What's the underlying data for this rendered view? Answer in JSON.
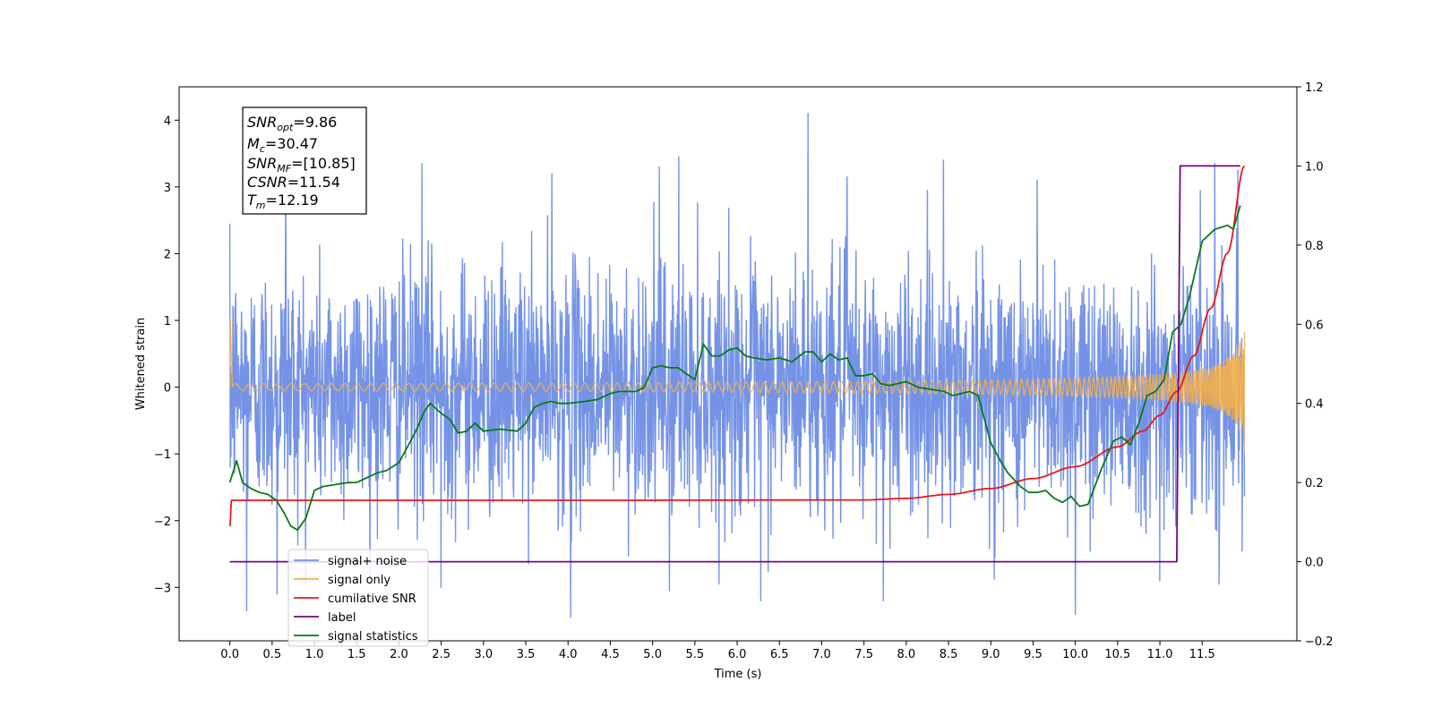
{
  "chart_data": {
    "type": "line",
    "xlabel": "Time (s)",
    "ylabel": "Whitened strain",
    "xlim": [
      -0.6,
      12.62
    ],
    "ylim": [
      -3.8,
      4.5
    ],
    "y2lim": [
      -0.2,
      1.2
    ],
    "x_ticks": [
      "0.0",
      "0.5",
      "1.0",
      "1.5",
      "2.0",
      "2.5",
      "3.0",
      "3.5",
      "4.0",
      "4.5",
      "5.0",
      "5.5",
      "6.0",
      "6.5",
      "7.0",
      "7.5",
      "8.0",
      "8.5",
      "9.0",
      "9.5",
      "10.0",
      "10.5",
      "11.0",
      "11.5"
    ],
    "y_ticks": [
      "4",
      "3",
      "2",
      "1",
      "0",
      "−1",
      "−2",
      "−3"
    ],
    "y2_ticks": [
      "1.2",
      "1.0",
      "0.8",
      "0.6",
      "0.4",
      "0.2",
      "0.0",
      "−0.2"
    ],
    "legend_position": "lower left",
    "grid": false,
    "annotation": {
      "lines": [
        {
          "sym": "SNR",
          "sub": "opt",
          "value": "=9.86"
        },
        {
          "sym": "M",
          "sub": "c",
          "value": "=30.47"
        },
        {
          "sym": "SNR",
          "sub": "MF",
          "value": "=[10.85]"
        },
        {
          "sym": "CSNR",
          "sub": "",
          "value": "=11.54"
        },
        {
          "sym": "T",
          "sub": "m",
          "value": "=12.19"
        }
      ]
    },
    "series": [
      {
        "name": "signal+ noise",
        "color": "#7593e6",
        "axis": "left",
        "kind": "noise",
        "x_range": [
          0,
          12.0
        ],
        "sigma": 1.0,
        "peaks": [
          {
            "x": 6.84,
            "y": 4.1
          },
          {
            "x": 0.66,
            "y": 3.25
          },
          {
            "x": 2.27,
            "y": 3.35
          },
          {
            "x": 3.81,
            "y": 3.2
          },
          {
            "x": 5.08,
            "y": 3.3
          },
          {
            "x": 5.31,
            "y": 3.45
          },
          {
            "x": 8.44,
            "y": 3.4
          },
          {
            "x": 11.65,
            "y": 3.35
          },
          {
            "x": 11.92,
            "y": 3.25
          },
          {
            "x": 7.3,
            "y": 3.15
          },
          {
            "x": 9.55,
            "y": 3.1
          },
          {
            "x": 4.03,
            "y": -3.45
          },
          {
            "x": 0.2,
            "y": -3.35
          },
          {
            "x": 10.0,
            "y": -3.4
          },
          {
            "x": 6.28,
            "y": -3.2
          },
          {
            "x": 7.73,
            "y": -3.2
          },
          {
            "x": 0.56,
            "y": -3.1
          },
          {
            "x": 2.5,
            "y": -3.0
          },
          {
            "x": 5.2,
            "y": -3.05
          },
          {
            "x": 11.0,
            "y": -2.9
          }
        ]
      },
      {
        "name": "signal only",
        "color": "#f5b04a",
        "axis": "left",
        "kind": "chirp",
        "x_range": [
          0,
          12.0
        ],
        "start_spike": 1.05,
        "end_amplitude": 1.05
      },
      {
        "name": "cumilative SNR",
        "color": "#e8191b",
        "axis": "right",
        "x": [
          0.0,
          0.02,
          4.0,
          7.5,
          8.0,
          8.5,
          9.0,
          9.5,
          10.0,
          10.5,
          10.8,
          11.0,
          11.2,
          11.4,
          11.6,
          11.8,
          12.0
        ],
        "y": [
          0.09,
          0.155,
          0.155,
          0.156,
          0.16,
          0.17,
          0.185,
          0.21,
          0.24,
          0.29,
          0.33,
          0.37,
          0.43,
          0.52,
          0.64,
          0.78,
          1.0
        ]
      },
      {
        "name": "label",
        "color": "#6f0a7d",
        "axis": "right",
        "x": [
          0.0,
          11.2,
          11.24,
          11.95
        ],
        "y": [
          0.0,
          0.0,
          1.0,
          1.0
        ]
      },
      {
        "name": "signal statistics",
        "color": "#0b7a16",
        "axis": "right",
        "x": [
          0.0,
          0.08,
          0.15,
          0.25,
          0.35,
          0.45,
          0.55,
          0.65,
          0.72,
          0.8,
          0.9,
          1.0,
          1.1,
          1.25,
          1.4,
          1.5,
          1.6,
          1.75,
          1.85,
          2.0,
          2.1,
          2.2,
          2.3,
          2.37,
          2.5,
          2.6,
          2.7,
          2.8,
          2.9,
          3.0,
          3.2,
          3.4,
          3.5,
          3.6,
          3.7,
          3.8,
          3.9,
          4.0,
          4.2,
          4.35,
          4.5,
          4.6,
          4.8,
          4.9,
          5.0,
          5.1,
          5.2,
          5.3,
          5.4,
          5.5,
          5.6,
          5.7,
          5.8,
          5.9,
          6.0,
          6.1,
          6.2,
          6.35,
          6.5,
          6.65,
          6.8,
          6.9,
          7.0,
          7.1,
          7.2,
          7.3,
          7.4,
          7.5,
          7.6,
          7.7,
          7.8,
          8.0,
          8.15,
          8.3,
          8.45,
          8.55,
          8.65,
          8.75,
          8.85,
          9.0,
          9.1,
          9.2,
          9.35,
          9.45,
          9.55,
          9.65,
          9.75,
          9.85,
          9.95,
          10.05,
          10.15,
          10.3,
          10.45,
          10.55,
          10.65,
          10.75,
          10.85,
          10.95,
          11.05,
          11.15,
          11.25,
          11.35,
          11.5,
          11.65,
          11.8,
          11.87,
          11.95
        ],
        "y": [
          0.2,
          0.255,
          0.2,
          0.185,
          0.175,
          0.17,
          0.155,
          0.12,
          0.09,
          0.08,
          0.11,
          0.18,
          0.19,
          0.195,
          0.2,
          0.2,
          0.21,
          0.225,
          0.23,
          0.25,
          0.29,
          0.33,
          0.38,
          0.4,
          0.375,
          0.36,
          0.325,
          0.33,
          0.35,
          0.33,
          0.335,
          0.33,
          0.35,
          0.39,
          0.4,
          0.405,
          0.4,
          0.4,
          0.405,
          0.41,
          0.425,
          0.43,
          0.43,
          0.44,
          0.49,
          0.495,
          0.49,
          0.49,
          0.475,
          0.46,
          0.55,
          0.52,
          0.52,
          0.535,
          0.54,
          0.52,
          0.515,
          0.51,
          0.515,
          0.505,
          0.53,
          0.53,
          0.505,
          0.525,
          0.51,
          0.515,
          0.47,
          0.47,
          0.475,
          0.45,
          0.445,
          0.455,
          0.44,
          0.435,
          0.43,
          0.42,
          0.425,
          0.43,
          0.42,
          0.3,
          0.26,
          0.225,
          0.19,
          0.175,
          0.175,
          0.18,
          0.16,
          0.15,
          0.165,
          0.14,
          0.145,
          0.23,
          0.305,
          0.315,
          0.295,
          0.35,
          0.42,
          0.43,
          0.46,
          0.58,
          0.6,
          0.67,
          0.81,
          0.84,
          0.85,
          0.84,
          0.9
        ]
      }
    ]
  }
}
